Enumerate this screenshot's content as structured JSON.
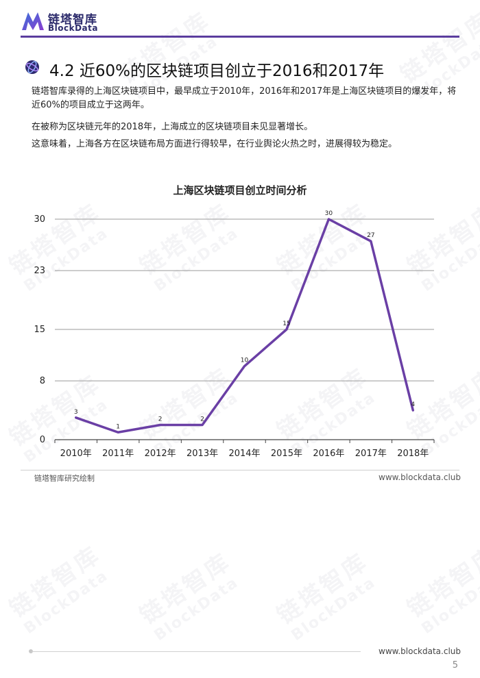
{
  "header": {
    "logo_cn": "链塔智库",
    "logo_en": "BlockData",
    "brand_color": "#5b3d9e"
  },
  "section": {
    "title": "4.2 近60%的区块链项目创立于2016和2017年",
    "icon": "globe-icon"
  },
  "body": {
    "p1": "链塔智库录得的上海区块链项目中，最早成立于2010年，2016年和2017年是上海区块链项目的爆发年，将近60%的项目成立于这两年。",
    "p2": "在被称为区块链元年的2018年，上海成立的区块链项目未见显著增长。",
    "p3": "这意味着，上海各方在区块链布局方面进行得较早，在行业舆论火热之时，进展得较为稳定。"
  },
  "chart_data": {
    "type": "line",
    "title": "上海区块链项目创立时间分析",
    "categories": [
      "2010年",
      "2011年",
      "2012年",
      "2013年",
      "2014年",
      "2015年",
      "2016年",
      "2017年",
      "2018年"
    ],
    "series": [
      {
        "values": [
          3,
          1,
          2,
          2,
          10,
          15,
          30,
          27,
          4
        ],
        "color": "#6a3fa5"
      }
    ],
    "data_labels": [
      "3",
      "1",
      "2",
      "2",
      "10",
      "15",
      "30",
      "27",
      "4"
    ],
    "yticks": [
      "0",
      "8",
      "15",
      "23",
      "30"
    ],
    "ylim": [
      0,
      30
    ],
    "grid": true,
    "xlabel": "",
    "ylabel": ""
  },
  "footer": {
    "source": "链塔智库研究绘制",
    "url": "www.blockdata.club"
  },
  "page": {
    "url": "www.blockdata.club",
    "number": "5"
  },
  "watermark": {
    "cn": "链塔智库",
    "en": "BlockData"
  }
}
